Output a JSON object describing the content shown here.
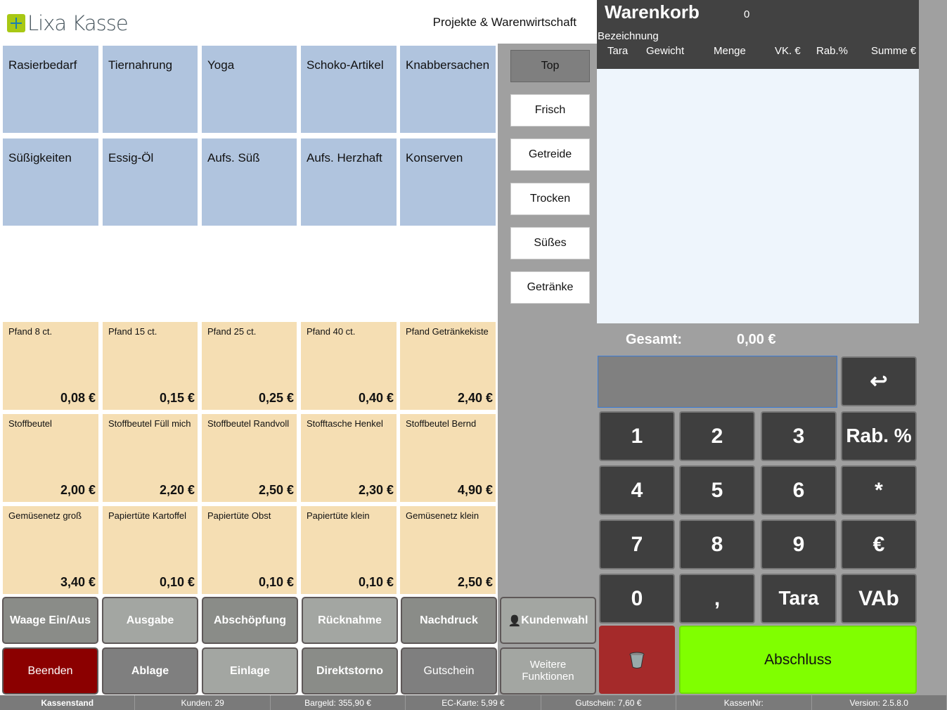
{
  "header": {
    "logo_text": "Lixa Kasse",
    "subtitle": "Projekte & Warenwirtschaft"
  },
  "categories": [
    "Rasierbedarf",
    "Tiernahrung",
    "Yoga",
    "Schoko-Artikel",
    "Knabbersachen",
    "Süßigkeiten",
    "Essig-Öl",
    "Aufs. Süß",
    "Aufs. Herzhaft",
    "Konserven"
  ],
  "products": [
    {
      "name": "Pfand 8 ct.",
      "price": "0,08 €"
    },
    {
      "name": "Pfand 15 ct.",
      "price": "0,15 €"
    },
    {
      "name": "Pfand 25 ct.",
      "price": "0,25 €"
    },
    {
      "name": "Pfand 40 ct.",
      "price": "0,40 €"
    },
    {
      "name": "Pfand Getränkekiste",
      "price": "2,40 €"
    },
    {
      "name": "Stoffbeutel",
      "price": "2,00 €"
    },
    {
      "name": "Stoffbeutel Füll mich",
      "price": "2,20 €"
    },
    {
      "name": "Stoffbeutel Randvoll",
      "price": "2,50 €"
    },
    {
      "name": "Stofftasche Henkel",
      "price": "2,30 €"
    },
    {
      "name": "Stoffbeutel Bernd",
      "price": "4,90 €"
    },
    {
      "name": "Gemüsenetz groß",
      "price": "3,40 €"
    },
    {
      "name": "Papiertüte Kartoffel",
      "price": "0,10 €"
    },
    {
      "name": "Papiertüte Obst",
      "price": "0,10 €"
    },
    {
      "name": "Papiertüte klein",
      "price": "0,10 €"
    },
    {
      "name": "Gemüsenetz klein",
      "price": "2,50 €"
    }
  ],
  "groups": [
    "Top",
    "Frisch",
    "Getreide",
    "Trocken",
    "Süßes",
    "Getränke"
  ],
  "cart": {
    "title": "Warenkorb",
    "count": "0",
    "col_name": "Bezeichnung",
    "columns": [
      "Tara",
      "Gewicht",
      "Menge",
      "VK. €",
      "Rab.%",
      "Summe €"
    ],
    "total_label": "Gesamt:",
    "total_value": "0,00 €",
    "input_value": ""
  },
  "keypad": {
    "keys": [
      "1",
      "2",
      "3",
      "Rab. %",
      "4",
      "5",
      "6",
      "*",
      "7",
      "8",
      "9",
      "€",
      "0",
      ",",
      "Tara",
      "VAb"
    ],
    "enter_icon": "return-arrow-icon",
    "delete_icon": "trash-icon",
    "finish": "Abschluss"
  },
  "functions": [
    {
      "label": "Waage Ein/Aus",
      "color": "#8a8c88"
    },
    {
      "label": "Ausgabe",
      "color": "#a3a6a2"
    },
    {
      "label": "Abschöpfung",
      "color": "#8a8c88"
    },
    {
      "label": "Rücknahme",
      "color": "#a3a6a2"
    },
    {
      "label": "Nachdruck",
      "color": "#8a8c88"
    },
    {
      "label": "Kundenwahl",
      "color": "#a3a6a2"
    },
    {
      "label": "Beenden",
      "color": "#8b0000"
    },
    {
      "label": "Ablage",
      "color": "#7f7f7f"
    },
    {
      "label": "Einlage",
      "color": "#a3a6a2"
    },
    {
      "label": "Direktstorno",
      "color": "#8a8c88"
    },
    {
      "label": "Gutschein",
      "color": "#7f7f7f"
    },
    {
      "label": "Weitere Funktionen",
      "color": "#a3a6a2"
    }
  ],
  "status": {
    "kassenstand": "Kassenstand",
    "kunden": "Kunden: 29",
    "bargeld": "Bargeld: 355,90 €",
    "ec": "EC-Karte: 5,99 €",
    "gutschein": "Gutschein: 7,60 €",
    "kassennr": "KassenNr:",
    "version": "Version: 2.5.8.0"
  }
}
